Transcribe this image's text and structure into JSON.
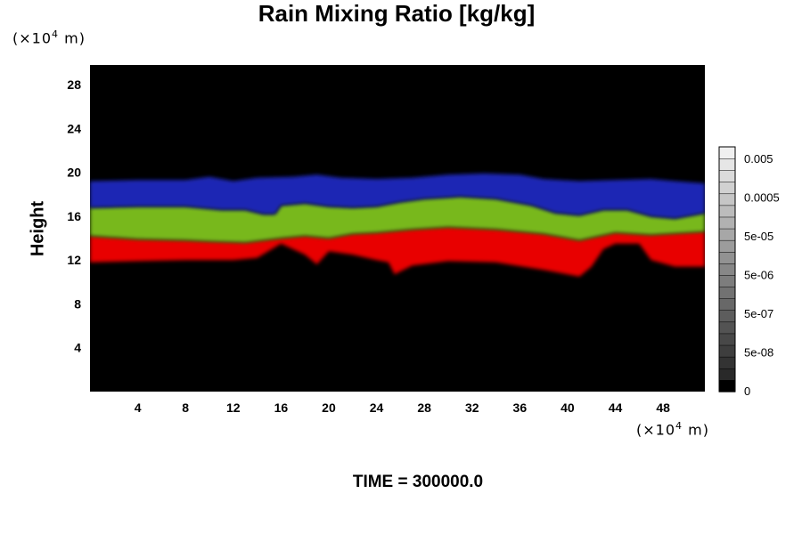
{
  "page": {
    "title": "Rain Mixing Ratio [kg/kg]",
    "unit_y": "(×10",
    "unit_x": "(×10",
    "unit_exp": "4",
    "unit_suffix": " m)",
    "time_label": "TIME = 300000.0"
  },
  "chart_data": {
    "type": "heatmap",
    "title": "Rain Mixing Ratio [kg/kg]",
    "ylabel": "Height",
    "xlabel": "",
    "x_unit": "(×10^4 m)",
    "y_unit": "(×10^4 m)",
    "xlim": [
      0,
      51.5
    ],
    "ylim": [
      0,
      29.8
    ],
    "x_ticks": [
      4,
      8,
      12,
      16,
      20,
      24,
      28,
      32,
      36,
      40,
      44,
      48
    ],
    "y_ticks": [
      4,
      8,
      12,
      16,
      20,
      24,
      28
    ],
    "background_color": "#000000",
    "colorbar": {
      "labels": [
        "0.005",
        "0.0005",
        "5e-05",
        "5e-06",
        "5e-07",
        "5e-08",
        "0"
      ],
      "n_levels": 21
    },
    "layers": [
      {
        "name": "red",
        "color": "#e80000",
        "bottom": [
          [
            0,
            11.8
          ],
          [
            4,
            11.9
          ],
          [
            8,
            12.0
          ],
          [
            12,
            12.0
          ],
          [
            14,
            12.2
          ],
          [
            16,
            13.5
          ],
          [
            18,
            12.5
          ],
          [
            19,
            11.6
          ],
          [
            20,
            12.8
          ],
          [
            22,
            12.5
          ],
          [
            24,
            12.0
          ],
          [
            25,
            11.8
          ],
          [
            25.5,
            10.7
          ],
          [
            27,
            11.5
          ],
          [
            30,
            11.9
          ],
          [
            34,
            11.8
          ],
          [
            38,
            11.1
          ],
          [
            41,
            10.5
          ],
          [
            42,
            11.4
          ],
          [
            43,
            13.0
          ],
          [
            44,
            13.5
          ],
          [
            46,
            13.5
          ],
          [
            47,
            12.0
          ],
          [
            49,
            11.4
          ],
          [
            51.5,
            11.4
          ]
        ],
        "top": [
          [
            0,
            14.2
          ],
          [
            4,
            13.9
          ],
          [
            8,
            13.8
          ],
          [
            10,
            13.7
          ],
          [
            13,
            13.6
          ],
          [
            16,
            14.0
          ],
          [
            18,
            14.2
          ],
          [
            20,
            14.0
          ],
          [
            22,
            14.4
          ],
          [
            24,
            14.5
          ],
          [
            27,
            14.8
          ],
          [
            30,
            15.0
          ],
          [
            34,
            14.8
          ],
          [
            38,
            14.4
          ],
          [
            41,
            13.8
          ],
          [
            44,
            14.5
          ],
          [
            47,
            14.3
          ],
          [
            51.5,
            14.6
          ]
        ]
      },
      {
        "name": "green",
        "color": "#78b81e",
        "bottom": [
          [
            0,
            14.2
          ],
          [
            4,
            13.9
          ],
          [
            8,
            13.8
          ],
          [
            10,
            13.7
          ],
          [
            13,
            13.6
          ],
          [
            16,
            14.0
          ],
          [
            18,
            14.2
          ],
          [
            20,
            14.0
          ],
          [
            22,
            14.4
          ],
          [
            24,
            14.5
          ],
          [
            27,
            14.8
          ],
          [
            30,
            15.0
          ],
          [
            34,
            14.8
          ],
          [
            38,
            14.4
          ],
          [
            41,
            13.8
          ],
          [
            44,
            14.5
          ],
          [
            47,
            14.3
          ],
          [
            51.5,
            14.6
          ]
        ],
        "top": [
          [
            0,
            16.8
          ],
          [
            4,
            16.9
          ],
          [
            8,
            16.9
          ],
          [
            11,
            16.6
          ],
          [
            13,
            16.6
          ],
          [
            14.5,
            16.2
          ],
          [
            15.5,
            16.2
          ],
          [
            16,
            17.0
          ],
          [
            18,
            17.2
          ],
          [
            20,
            16.9
          ],
          [
            22,
            16.8
          ],
          [
            24,
            16.9
          ],
          [
            26,
            17.3
          ],
          [
            28,
            17.6
          ],
          [
            31,
            17.8
          ],
          [
            34,
            17.6
          ],
          [
            37,
            17.0
          ],
          [
            39,
            16.3
          ],
          [
            41,
            16.1
          ],
          [
            43,
            16.6
          ],
          [
            45,
            16.6
          ],
          [
            47,
            16.0
          ],
          [
            49,
            15.8
          ],
          [
            51.5,
            16.3
          ]
        ]
      },
      {
        "name": "blue",
        "color": "#1d26b4",
        "bottom": [
          [
            0,
            16.8
          ],
          [
            4,
            16.9
          ],
          [
            8,
            16.9
          ],
          [
            11,
            16.6
          ],
          [
            13,
            16.6
          ],
          [
            14.5,
            16.2
          ],
          [
            15.5,
            16.2
          ],
          [
            16,
            17.0
          ],
          [
            18,
            17.2
          ],
          [
            20,
            16.9
          ],
          [
            22,
            16.8
          ],
          [
            24,
            16.9
          ],
          [
            26,
            17.3
          ],
          [
            28,
            17.6
          ],
          [
            31,
            17.8
          ],
          [
            34,
            17.6
          ],
          [
            37,
            17.0
          ],
          [
            39,
            16.3
          ],
          [
            41,
            16.1
          ],
          [
            43,
            16.6
          ],
          [
            45,
            16.6
          ],
          [
            47,
            16.0
          ],
          [
            49,
            15.8
          ],
          [
            51.5,
            16.3
          ]
        ],
        "top": [
          [
            0,
            19.2
          ],
          [
            4,
            19.3
          ],
          [
            8,
            19.3
          ],
          [
            10,
            19.6
          ],
          [
            12,
            19.2
          ],
          [
            14,
            19.5
          ],
          [
            17,
            19.6
          ],
          [
            19,
            19.8
          ],
          [
            21,
            19.5
          ],
          [
            24,
            19.4
          ],
          [
            27,
            19.5
          ],
          [
            30,
            19.8
          ],
          [
            33,
            19.9
          ],
          [
            36,
            19.8
          ],
          [
            38,
            19.4
          ],
          [
            41,
            19.2
          ],
          [
            44,
            19.3
          ],
          [
            47,
            19.4
          ],
          [
            49,
            19.2
          ],
          [
            51.5,
            19.0
          ]
        ]
      }
    ]
  }
}
